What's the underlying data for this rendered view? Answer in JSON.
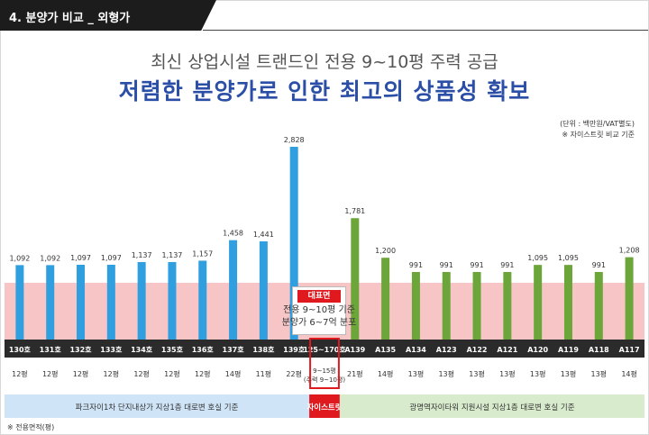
{
  "header": {
    "section_title": "4. 분양가 비교 _ 외형가"
  },
  "subtitle": "최신 상업시설 트랜드인 전용 9~10평 주력 공급",
  "title": "저렴한 분양가로 인한 최고의 상품성 확보",
  "unit_note": [
    "(단위 : 백만원/VAT별도)",
    "※ 자이스트릿 비교 기준"
  ],
  "highlight": {
    "tag": "대표면",
    "lines": [
      "전용 9~10평 기준",
      "분양가 6~7억 분포"
    ]
  },
  "footnote": "※ 전용면적(평)",
  "colors": {
    "blue": "#2f9fe0",
    "green": "#6ca53a",
    "red": "#e0191f",
    "pink_band": "#f7c5c5",
    "label_bar": "#2b2b2b"
  },
  "chart_data": {
    "type": "bar",
    "title": "",
    "xlabel": "",
    "ylabel": "",
    "ylim": [
      0,
      3000
    ],
    "grid": false,
    "categories": [
      "130호",
      "131호",
      "132호",
      "133호",
      "134호",
      "135호",
      "136호",
      "137호",
      "138호",
      "139호",
      "125~170호",
      "A139",
      "A135",
      "A134",
      "A123",
      "A122",
      "A121",
      "A120",
      "A119",
      "A118",
      "A117"
    ],
    "values": [
      1092,
      1092,
      1097,
      1097,
      1137,
      1137,
      1157,
      1458,
      1441,
      2828,
      null,
      1781,
      1200,
      991,
      991,
      991,
      991,
      1095,
      1095,
      991,
      1208
    ],
    "value_labels": [
      "1,092",
      "1,092",
      "1,097",
      "1,097",
      "1,137",
      "1,137",
      "1,157",
      "1,458",
      "1,441",
      "2,828",
      "",
      "1,781",
      "1,200",
      "991",
      "991",
      "991",
      "991",
      "1,095",
      "1,095",
      "991",
      "1,208"
    ],
    "areas": [
      "12평",
      "12평",
      "12평",
      "12평",
      "12평",
      "12평",
      "12평",
      "14평",
      "11평",
      "22평",
      "",
      "21평",
      "14평",
      "13평",
      "13평",
      "13평",
      "13평",
      "13평",
      "13평",
      "13평",
      "14평"
    ],
    "center_area": {
      "line1": "9~15평",
      "line2": "(주력 9~10평)"
    },
    "groups": [
      {
        "name": "파크자이1차 단지내상가 지상1층 대로변 호실 기준",
        "from": 0,
        "to": 9,
        "color": "#cfe4f6",
        "text_color": "#333333"
      },
      {
        "name": "자이스트릿",
        "from": 10,
        "to": 10,
        "color": "#e0191f",
        "text_color": "#ffffff"
      },
      {
        "name": "광명역자이타워 지원시설 지상1층 대로변 호실 기준",
        "from": 11,
        "to": 20,
        "color": "#d8ebcc",
        "text_color": "#333333"
      }
    ],
    "series_colors": [
      "blue",
      "blue",
      "blue",
      "blue",
      "blue",
      "blue",
      "blue",
      "blue",
      "blue",
      "blue",
      "none",
      "green",
      "green",
      "green",
      "green",
      "green",
      "green",
      "green",
      "green",
      "green",
      "green"
    ]
  }
}
